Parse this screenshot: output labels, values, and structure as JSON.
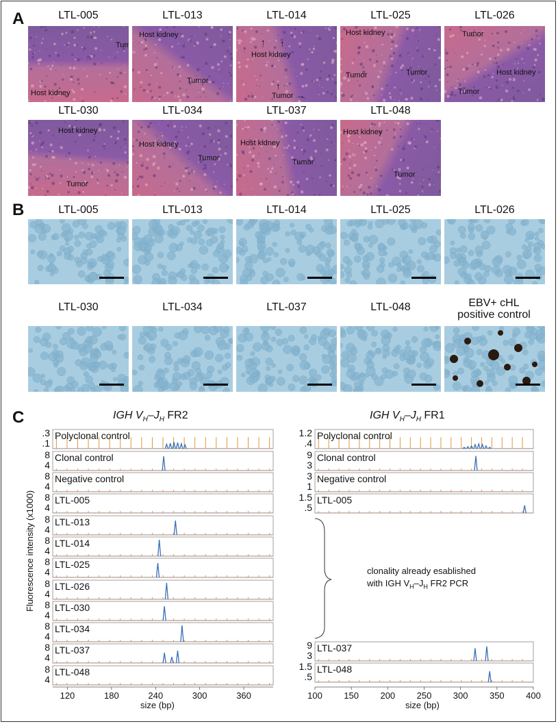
{
  "panels": {
    "a": "A",
    "b": "B",
    "c": "C"
  },
  "he_samples": [
    {
      "id": "LTL-005",
      "labels": [
        "Tumor",
        "Host kidney"
      ]
    },
    {
      "id": "LTL-013",
      "labels": [
        "Host kidney",
        "Tumor"
      ]
    },
    {
      "id": "LTL-014",
      "labels": [
        "Host kidney",
        "Tumor"
      ]
    },
    {
      "id": "LTL-025",
      "labels": [
        "Host kidney",
        "Tumor",
        "Tumor"
      ]
    },
    {
      "id": "LTL-026",
      "labels": [
        "Tumor",
        "Host kidney",
        "Tumor"
      ]
    },
    {
      "id": "LTL-030",
      "labels": [
        "Host kidney",
        "Tumor"
      ]
    },
    {
      "id": "LTL-034",
      "labels": [
        "Host kidney",
        "Tumor"
      ]
    },
    {
      "id": "LTL-037",
      "labels": [
        "Host kidney",
        "Tumor"
      ]
    },
    {
      "id": "LTL-048",
      "labels": [
        "Host kidney",
        "Tumor"
      ]
    }
  ],
  "ihc_samples": [
    "LTL-005",
    "LTL-013",
    "LTL-014",
    "LTL-025",
    "LTL-026",
    "LTL-030",
    "LTL-034",
    "LTL-037",
    "LTL-048"
  ],
  "ihc_control": {
    "line1": "EBV+ cHL",
    "line2": "positive control"
  },
  "fr2": {
    "title_gene": "IGH",
    "title_v": "V",
    "title_sub_h": "H",
    "title_dash": "–",
    "title_j": "J",
    "title_region": "FR2",
    "ylabel": "Fluorescence intensity (x1000)",
    "xlabel": "size (bp)",
    "xticks": [
      "120",
      "180",
      "240",
      "300",
      "360"
    ],
    "traces": [
      {
        "name": "Polyclonal control",
        "yticks": [
          ".3",
          ".1"
        ]
      },
      {
        "name": "Clonal control",
        "yticks": [
          "8",
          "4"
        ]
      },
      {
        "name": "Negative control",
        "yticks": [
          "8",
          "4"
        ]
      },
      {
        "name": "LTL-005",
        "yticks": [
          "8",
          "4"
        ]
      },
      {
        "name": "LTL-013",
        "yticks": [
          "8",
          "4"
        ]
      },
      {
        "name": "LTL-014",
        "yticks": [
          "8",
          "4"
        ]
      },
      {
        "name": "LTL-025",
        "yticks": [
          "8",
          "4"
        ]
      },
      {
        "name": "LTL-026",
        "yticks": [
          "8",
          "4"
        ]
      },
      {
        "name": "LTL-030",
        "yticks": [
          "8",
          "4"
        ]
      },
      {
        "name": "LTL-034",
        "yticks": [
          "8",
          "4"
        ]
      },
      {
        "name": "LTL-037",
        "yticks": [
          "8",
          "4"
        ]
      },
      {
        "name": "LTL-048",
        "yticks": [
          "8",
          "4"
        ]
      }
    ]
  },
  "fr1": {
    "title_gene": "IGH",
    "title_region": "FR1",
    "xlabel": "size (bp)",
    "xticks": [
      "100",
      "150",
      "200",
      "250",
      "300",
      "350",
      "400"
    ],
    "traces": [
      {
        "name": "Polyclonal control",
        "yticks": [
          "1.2",
          ".4"
        ]
      },
      {
        "name": "Clonal control",
        "yticks": [
          "9",
          "3"
        ]
      },
      {
        "name": "Negative control",
        "yticks": [
          "3",
          "1"
        ]
      },
      {
        "name": "LTL-005",
        "yticks": [
          "1.5",
          ".5"
        ]
      },
      {
        "name": "LTL-037",
        "yticks": [
          "9",
          "3"
        ]
      },
      {
        "name": "LTL-048",
        "yticks": [
          "1.5",
          ".5"
        ]
      }
    ],
    "note_line1": "clonality already esablished",
    "note_line2_pre": "with IGH V",
    "note_line2_post": " FR2 PCR"
  },
  "chart_data": [
    {
      "type": "line",
      "title": "IGH VH–JH FR2",
      "xlabel": "size (bp)",
      "ylabel": "Fluorescence intensity (x1000)",
      "xlim": [
        100,
        400
      ],
      "series": [
        {
          "name": "Polyclonal control",
          "peaks_bp": [
            255,
            260,
            265,
            270,
            275,
            280
          ],
          "height": [
            0.08,
            0.1,
            0.12,
            0.11,
            0.09,
            0.07
          ]
        },
        {
          "name": "Clonal control",
          "peaks_bp": [
            251
          ],
          "height": [
            7
          ]
        },
        {
          "name": "Negative control",
          "peaks_bp": [],
          "height": []
        },
        {
          "name": "LTL-005",
          "peaks_bp": [],
          "height": []
        },
        {
          "name": "LTL-013",
          "peaks_bp": [
            267
          ],
          "height": [
            7
          ]
        },
        {
          "name": "LTL-014",
          "peaks_bp": [
            245
          ],
          "height": [
            8
          ]
        },
        {
          "name": "LTL-025",
          "peaks_bp": [
            243
          ],
          "height": [
            7
          ]
        },
        {
          "name": "LTL-026",
          "peaks_bp": [
            255
          ],
          "height": [
            8
          ]
        },
        {
          "name": "LTL-030",
          "peaks_bp": [
            252
          ],
          "height": [
            7
          ]
        },
        {
          "name": "LTL-034",
          "peaks_bp": [
            276
          ],
          "height": [
            8
          ]
        },
        {
          "name": "LTL-037",
          "peaks_bp": [
            252,
            262,
            270
          ],
          "height": [
            5,
            3,
            6
          ]
        },
        {
          "name": "LTL-048",
          "peaks_bp": [],
          "height": []
        }
      ]
    },
    {
      "type": "line",
      "title": "IGH VH–JH FR1",
      "xlabel": "size (bp)",
      "xlim": [
        100,
        400
      ],
      "series": [
        {
          "name": "Polyclonal control",
          "peaks_bp": [
            305,
            310,
            315,
            320,
            325,
            330,
            335,
            340
          ],
          "height": [
            0.1,
            0.15,
            0.2,
            0.3,
            0.35,
            0.3,
            0.2,
            0.1
          ]
        },
        {
          "name": "Clonal control",
          "peaks_bp": [
            321
          ],
          "height": [
            8
          ]
        },
        {
          "name": "Negative control",
          "peaks_bp": [],
          "height": []
        },
        {
          "name": "LTL-005",
          "peaks_bp": [
            388
          ],
          "height": [
            0.7
          ]
        },
        {
          "name": "LTL-037",
          "peaks_bp": [
            320,
            336
          ],
          "height": [
            7,
            8
          ]
        },
        {
          "name": "LTL-048",
          "peaks_bp": [
            340
          ],
          "height": [
            1.0
          ]
        }
      ]
    }
  ],
  "colors": {
    "he_pink": "#c86a8c",
    "he_purple": "#8a5aa6",
    "ihc_blue": "#a9cde0",
    "trace_blue": "#3a6fb5",
    "size_std": "#e0963a"
  }
}
